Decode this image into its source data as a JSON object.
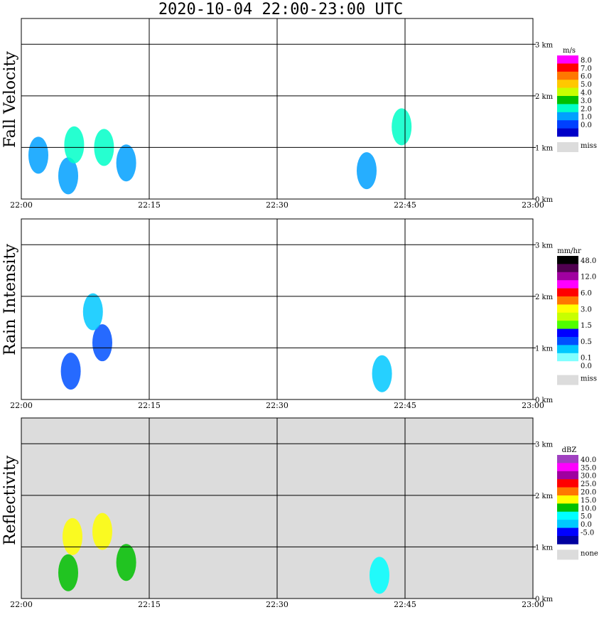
{
  "title": "2020-10-04   22:00-23:00 UTC",
  "chart_data": [
    {
      "type": "heatmap",
      "name": "Fall Velocity",
      "xlabel": "",
      "ylabel": "Fall Velocity",
      "x_ticks": [
        "22:00",
        "22:15",
        "22:30",
        "22:45",
        "23:00"
      ],
      "y_ticks": [
        "0 km",
        "1 km",
        "2 km",
        "3 km"
      ],
      "ylim_km": [
        0,
        3.5
      ],
      "background": "#ffffff",
      "colorbar": {
        "unit": "m/s",
        "labels": [
          "8.0",
          "7.0",
          "6.0",
          "5.0",
          "4.0",
          "3.0",
          "2.0",
          "1.0",
          "0.0"
        ],
        "colors": [
          "#ff00ff",
          "#ff0000",
          "#ff7800",
          "#ffc800",
          "#c8ff00",
          "#00c000",
          "#00ffc8",
          "#00a0ff",
          "#0040ff",
          "#0000c8"
        ],
        "miss_label": "miss",
        "miss_color": "#dcdcdc"
      },
      "cells": [
        {
          "t": 2.0,
          "h": 0.85,
          "v": 1.2
        },
        {
          "t": 5.5,
          "h": 0.45,
          "v": 1.4
        },
        {
          "t": 6.2,
          "h": 1.05,
          "v": 2.2
        },
        {
          "t": 9.7,
          "h": 1.0,
          "v": 2.0
        },
        {
          "t": 12.3,
          "h": 0.7,
          "v": 1.8
        },
        {
          "t": 40.5,
          "h": 0.55,
          "v": 1.6
        },
        {
          "t": 44.6,
          "h": 1.4,
          "v": 2.5
        }
      ]
    },
    {
      "type": "heatmap",
      "name": "Rain Intensity",
      "xlabel": "",
      "ylabel": "Rain Intensity",
      "x_ticks": [
        "22:00",
        "22:15",
        "22:30",
        "22:45",
        "23:00"
      ],
      "y_ticks": [
        "0 km",
        "1 km",
        "2 km",
        "3 km"
      ],
      "ylim_km": [
        0,
        3.5
      ],
      "background": "#ffffff",
      "colorbar": {
        "unit": "mm/hr",
        "labels": [
          "48.0",
          "12.0",
          "6.0",
          "3.0",
          "1.5",
          "0.5",
          "0.1",
          "0.0"
        ],
        "label_positions": [
          0,
          2,
          4,
          6,
          8,
          10,
          12,
          13
        ],
        "colors": [
          "#000000",
          "#500050",
          "#a000a0",
          "#ff00ff",
          "#ff0000",
          "#ff7800",
          "#ffff00",
          "#c8ff00",
          "#50ff00",
          "#0000ff",
          "#0050ff",
          "#00c8ff",
          "#80ffff",
          "#ffffff"
        ],
        "miss_label": "miss",
        "miss_color": "#dcdcdc"
      },
      "cells": [
        {
          "t": 5.8,
          "h": 0.55,
          "v": 0.7
        },
        {
          "t": 9.5,
          "h": 1.1,
          "v": 0.6
        },
        {
          "t": 8.4,
          "h": 1.7,
          "v": 0.4
        },
        {
          "t": 42.3,
          "h": 0.5,
          "v": 0.1
        }
      ]
    },
    {
      "type": "heatmap",
      "name": "Reflectivity",
      "xlabel": "",
      "ylabel": "Reflectivity",
      "x_ticks": [
        "22:00",
        "22:15",
        "22:30",
        "22:45",
        "23:00"
      ],
      "y_ticks": [
        "0 km",
        "1 km",
        "2 km",
        "3 km"
      ],
      "ylim_km": [
        0,
        3.5
      ],
      "background": "#dcdcdc",
      "colorbar": {
        "unit": "dBZ",
        "labels": [
          "40.0",
          "35.0",
          "30.0",
          "25.0",
          "20.0",
          "15.0",
          "10.0",
          "5.0",
          "0.0",
          "-5.0"
        ],
        "colors": [
          "#a040c0",
          "#ff00ff",
          "#a000a0",
          "#ff0000",
          "#ff7800",
          "#ffff00",
          "#00c000",
          "#00ffff",
          "#00c8ff",
          "#0000ff",
          "#0000a0"
        ],
        "miss_label": "none",
        "miss_color": "#dcdcdc"
      },
      "cells": [
        {
          "t": 6.0,
          "h": 1.2,
          "v": 15
        },
        {
          "t": 9.5,
          "h": 1.3,
          "v": 14
        },
        {
          "t": 5.5,
          "h": 0.5,
          "v": 8
        },
        {
          "t": 12.3,
          "h": 0.7,
          "v": 10
        },
        {
          "t": 42.0,
          "h": 0.45,
          "v": 5
        }
      ]
    }
  ]
}
